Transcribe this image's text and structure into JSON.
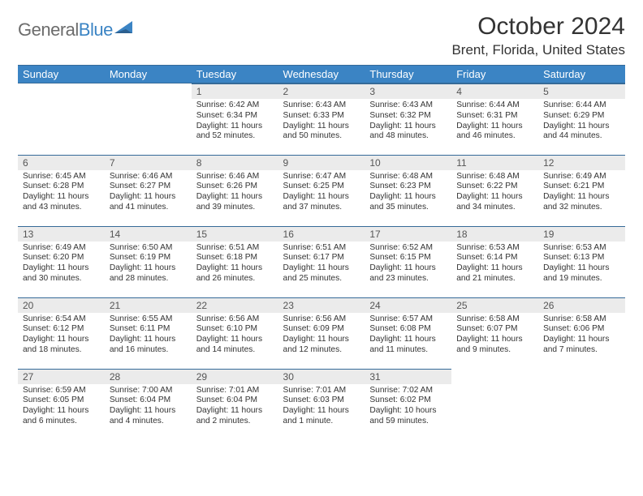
{
  "logo": {
    "text_general": "General",
    "text_blue": "Blue"
  },
  "title": "October 2024",
  "location": "Brent, Florida, United States",
  "colors": {
    "header_bg": "#3b84c4",
    "header_border": "#356a98",
    "daynum_bg": "#ebebeb",
    "text": "#333333",
    "logo_gray": "#6c6c6c",
    "logo_blue": "#3b84c4",
    "page_bg": "#ffffff"
  },
  "weekdays": [
    "Sunday",
    "Monday",
    "Tuesday",
    "Wednesday",
    "Thursday",
    "Friday",
    "Saturday"
  ],
  "weeks": [
    [
      null,
      null,
      {
        "n": "1",
        "sr": "Sunrise: 6:42 AM",
        "ss": "Sunset: 6:34 PM",
        "dl": "Daylight: 11 hours and 52 minutes."
      },
      {
        "n": "2",
        "sr": "Sunrise: 6:43 AM",
        "ss": "Sunset: 6:33 PM",
        "dl": "Daylight: 11 hours and 50 minutes."
      },
      {
        "n": "3",
        "sr": "Sunrise: 6:43 AM",
        "ss": "Sunset: 6:32 PM",
        "dl": "Daylight: 11 hours and 48 minutes."
      },
      {
        "n": "4",
        "sr": "Sunrise: 6:44 AM",
        "ss": "Sunset: 6:31 PM",
        "dl": "Daylight: 11 hours and 46 minutes."
      },
      {
        "n": "5",
        "sr": "Sunrise: 6:44 AM",
        "ss": "Sunset: 6:29 PM",
        "dl": "Daylight: 11 hours and 44 minutes."
      }
    ],
    [
      {
        "n": "6",
        "sr": "Sunrise: 6:45 AM",
        "ss": "Sunset: 6:28 PM",
        "dl": "Daylight: 11 hours and 43 minutes."
      },
      {
        "n": "7",
        "sr": "Sunrise: 6:46 AM",
        "ss": "Sunset: 6:27 PM",
        "dl": "Daylight: 11 hours and 41 minutes."
      },
      {
        "n": "8",
        "sr": "Sunrise: 6:46 AM",
        "ss": "Sunset: 6:26 PM",
        "dl": "Daylight: 11 hours and 39 minutes."
      },
      {
        "n": "9",
        "sr": "Sunrise: 6:47 AM",
        "ss": "Sunset: 6:25 PM",
        "dl": "Daylight: 11 hours and 37 minutes."
      },
      {
        "n": "10",
        "sr": "Sunrise: 6:48 AM",
        "ss": "Sunset: 6:23 PM",
        "dl": "Daylight: 11 hours and 35 minutes."
      },
      {
        "n": "11",
        "sr": "Sunrise: 6:48 AM",
        "ss": "Sunset: 6:22 PM",
        "dl": "Daylight: 11 hours and 34 minutes."
      },
      {
        "n": "12",
        "sr": "Sunrise: 6:49 AM",
        "ss": "Sunset: 6:21 PM",
        "dl": "Daylight: 11 hours and 32 minutes."
      }
    ],
    [
      {
        "n": "13",
        "sr": "Sunrise: 6:49 AM",
        "ss": "Sunset: 6:20 PM",
        "dl": "Daylight: 11 hours and 30 minutes."
      },
      {
        "n": "14",
        "sr": "Sunrise: 6:50 AM",
        "ss": "Sunset: 6:19 PM",
        "dl": "Daylight: 11 hours and 28 minutes."
      },
      {
        "n": "15",
        "sr": "Sunrise: 6:51 AM",
        "ss": "Sunset: 6:18 PM",
        "dl": "Daylight: 11 hours and 26 minutes."
      },
      {
        "n": "16",
        "sr": "Sunrise: 6:51 AM",
        "ss": "Sunset: 6:17 PM",
        "dl": "Daylight: 11 hours and 25 minutes."
      },
      {
        "n": "17",
        "sr": "Sunrise: 6:52 AM",
        "ss": "Sunset: 6:15 PM",
        "dl": "Daylight: 11 hours and 23 minutes."
      },
      {
        "n": "18",
        "sr": "Sunrise: 6:53 AM",
        "ss": "Sunset: 6:14 PM",
        "dl": "Daylight: 11 hours and 21 minutes."
      },
      {
        "n": "19",
        "sr": "Sunrise: 6:53 AM",
        "ss": "Sunset: 6:13 PM",
        "dl": "Daylight: 11 hours and 19 minutes."
      }
    ],
    [
      {
        "n": "20",
        "sr": "Sunrise: 6:54 AM",
        "ss": "Sunset: 6:12 PM",
        "dl": "Daylight: 11 hours and 18 minutes."
      },
      {
        "n": "21",
        "sr": "Sunrise: 6:55 AM",
        "ss": "Sunset: 6:11 PM",
        "dl": "Daylight: 11 hours and 16 minutes."
      },
      {
        "n": "22",
        "sr": "Sunrise: 6:56 AM",
        "ss": "Sunset: 6:10 PM",
        "dl": "Daylight: 11 hours and 14 minutes."
      },
      {
        "n": "23",
        "sr": "Sunrise: 6:56 AM",
        "ss": "Sunset: 6:09 PM",
        "dl": "Daylight: 11 hours and 12 minutes."
      },
      {
        "n": "24",
        "sr": "Sunrise: 6:57 AM",
        "ss": "Sunset: 6:08 PM",
        "dl": "Daylight: 11 hours and 11 minutes."
      },
      {
        "n": "25",
        "sr": "Sunrise: 6:58 AM",
        "ss": "Sunset: 6:07 PM",
        "dl": "Daylight: 11 hours and 9 minutes."
      },
      {
        "n": "26",
        "sr": "Sunrise: 6:58 AM",
        "ss": "Sunset: 6:06 PM",
        "dl": "Daylight: 11 hours and 7 minutes."
      }
    ],
    [
      {
        "n": "27",
        "sr": "Sunrise: 6:59 AM",
        "ss": "Sunset: 6:05 PM",
        "dl": "Daylight: 11 hours and 6 minutes."
      },
      {
        "n": "28",
        "sr": "Sunrise: 7:00 AM",
        "ss": "Sunset: 6:04 PM",
        "dl": "Daylight: 11 hours and 4 minutes."
      },
      {
        "n": "29",
        "sr": "Sunrise: 7:01 AM",
        "ss": "Sunset: 6:04 PM",
        "dl": "Daylight: 11 hours and 2 minutes."
      },
      {
        "n": "30",
        "sr": "Sunrise: 7:01 AM",
        "ss": "Sunset: 6:03 PM",
        "dl": "Daylight: 11 hours and 1 minute."
      },
      {
        "n": "31",
        "sr": "Sunrise: 7:02 AM",
        "ss": "Sunset: 6:02 PM",
        "dl": "Daylight: 10 hours and 59 minutes."
      },
      null,
      null
    ]
  ]
}
